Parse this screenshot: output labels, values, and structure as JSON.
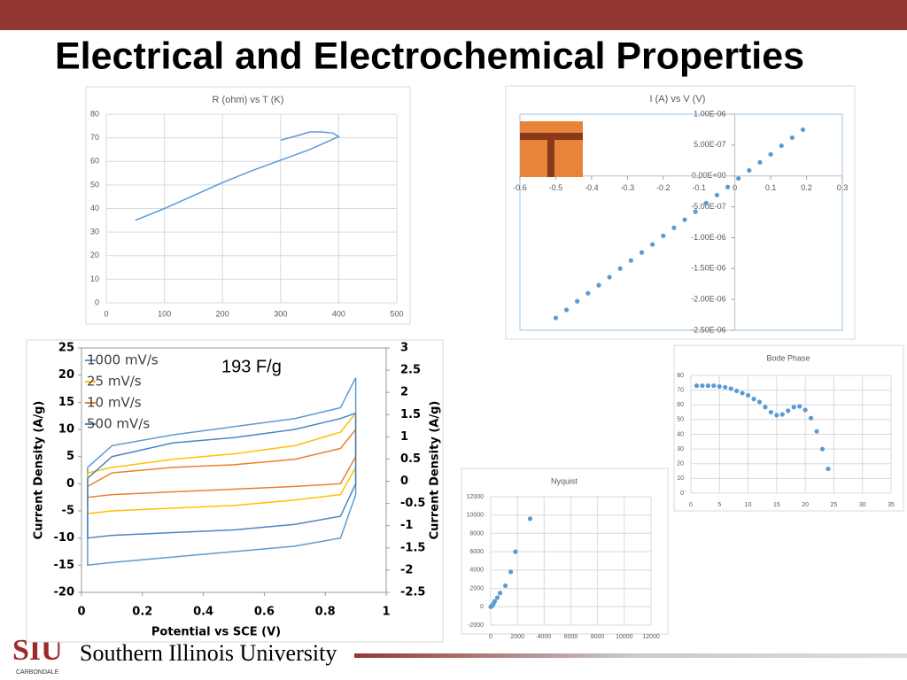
{
  "title": "Electrical and Electrochemical Properties",
  "footer": {
    "logo": "SIU",
    "campus": "CARBONDALE",
    "university": "Southern Illinois University"
  },
  "chart_data": [
    {
      "type": "line",
      "title": "R (ohm)  vs T (K)",
      "grid": true,
      "color": "#5b9bd5",
      "x": [
        50,
        100,
        150,
        200,
        250,
        300,
        350,
        400,
        390,
        370,
        350,
        330,
        300
      ],
      "values": [
        35,
        40,
        45.5,
        51,
        56,
        60.5,
        65,
        70.5,
        72,
        72.5,
        72.5,
        71,
        69
      ],
      "xlim": [
        0,
        500
      ],
      "xticks": [
        0,
        100,
        200,
        300,
        400,
        500
      ],
      "ylim": [
        0,
        80
      ],
      "yticks": [
        0,
        10,
        20,
        30,
        40,
        50,
        60,
        70,
        80
      ]
    },
    {
      "type": "scatter",
      "title": "I (A) vs V (V)",
      "grid": false,
      "color": "#5b9bd5",
      "x": [
        -0.5,
        -0.47,
        -0.44,
        -0.41,
        -0.38,
        -0.35,
        -0.32,
        -0.29,
        -0.26,
        -0.23,
        -0.2,
        -0.17,
        -0.14,
        -0.11,
        -0.08,
        -0.05,
        -0.02,
        0.01,
        0.04,
        0.07,
        0.1,
        0.13,
        0.16,
        0.19
      ],
      "values": [
        -2.3e-06,
        -2.17e-06,
        -2.03e-06,
        -1.9e-06,
        -1.77e-06,
        -1.64e-06,
        -1.5e-06,
        -1.37e-06,
        -1.24e-06,
        -1.11e-06,
        -9.7e-07,
        -8.4e-07,
        -7.1e-07,
        -5.8e-07,
        -4.4e-07,
        -3.1e-07,
        -1.8e-07,
        -4e-08,
        9e-08,
        2.2e-07,
        3.5e-07,
        4.9e-07,
        6.2e-07,
        7.5e-07
      ],
      "xlim": [
        -0.6,
        0.3
      ],
      "xticks": [
        -0.6,
        -0.5,
        -0.4,
        -0.3,
        -0.2,
        -0.1,
        0,
        0.1,
        0.2,
        0.3
      ],
      "ylim": [
        -2.5e-06,
        1e-06
      ],
      "yticks": [
        {
          "value": 1e-06,
          "label": "1.00E-06"
        },
        {
          "value": 5e-07,
          "label": "5.00E-07"
        },
        {
          "value": 0,
          "label": "0.00E+00"
        },
        {
          "value": -5e-07,
          "label": "-5.00E-07"
        },
        {
          "value": -1e-06,
          "label": "-1.00E-06"
        },
        {
          "value": -1.5e-06,
          "label": "-1.50E-06"
        },
        {
          "value": -2e-06,
          "label": "-2.00E-06"
        },
        {
          "value": -2.5e-06,
          "label": "-2.50E-06"
        }
      ]
    },
    {
      "type": "line",
      "grid": false,
      "annotation": "193 F/g",
      "x_label": "Potential vs SCE (V)",
      "y_label": "Current Density (A/g)",
      "y2_label": "Current Density (A/g)",
      "x": [
        0.02,
        0.1,
        0.3,
        0.5,
        0.7,
        0.85,
        0.9,
        0.9,
        0.85,
        0.7,
        0.5,
        0.3,
        0.1,
        0.02,
        0.02
      ],
      "series": [
        {
          "name": "1000 mV/s",
          "color": "#5b9bd5",
          "values": [
            3,
            7,
            9,
            10.5,
            12,
            14,
            19.5,
            -2,
            -10,
            -11.5,
            -12.5,
            -13.5,
            -14.5,
            -15,
            3
          ]
        },
        {
          "name": "25 mV/s",
          "color": "#ffc000",
          "values": [
            2,
            3,
            4.5,
            5.5,
            7,
            9.5,
            13,
            3,
            -2,
            -3,
            -4,
            -4.5,
            -5,
            -5.5,
            2
          ]
        },
        {
          "name": "10 mV/s",
          "color": "#ed7d31",
          "values": [
            -0.5,
            2,
            3,
            3.5,
            4.5,
            6.5,
            10,
            5,
            0,
            -0.5,
            -1,
            -1.5,
            -2,
            -2.5,
            -0.5
          ]
        },
        {
          "name": "500 mV/s",
          "color": "#4a86c5",
          "values": [
            1,
            5,
            7.5,
            8.5,
            10,
            12,
            13,
            0,
            -6,
            -7.5,
            -8.5,
            -9,
            -9.5,
            -10,
            1
          ]
        }
      ],
      "xlim": [
        0,
        1
      ],
      "xticks": [
        0,
        0.2,
        0.4,
        0.6,
        0.8,
        1
      ],
      "ylim": [
        -20,
        25
      ],
      "yticks": [
        -20,
        -15,
        -10,
        -5,
        0,
        5,
        10,
        15,
        20,
        25
      ],
      "y2lim": [
        -2.5,
        3
      ],
      "y2ticks": [
        -2.5,
        -2,
        -1.5,
        -1,
        -0.5,
        0,
        0.5,
        1,
        1.5,
        2,
        2.5,
        3
      ]
    },
    {
      "type": "scatter",
      "title": "Bode Phase",
      "grid": true,
      "color": "#5b9bd5",
      "x": [
        1,
        2,
        3,
        4,
        5,
        6,
        7,
        8,
        9,
        10,
        11,
        12,
        13,
        14,
        15,
        16,
        17,
        18,
        19,
        20,
        21,
        22,
        23,
        24
      ],
      "values": [
        73,
        73,
        73,
        73,
        72.5,
        72,
        71,
        69.5,
        68,
        66.5,
        64,
        62,
        58.5,
        55,
        53,
        53.5,
        56,
        58.5,
        59,
        56.5,
        51,
        42,
        30,
        16.5
      ],
      "xlim": [
        0,
        35
      ],
      "xticks": [
        0,
        5,
        10,
        15,
        20,
        25,
        30,
        35
      ],
      "ylim": [
        0,
        80
      ],
      "yticks": [
        0,
        10,
        20,
        30,
        40,
        50,
        60,
        70,
        80
      ]
    },
    {
      "type": "scatter",
      "title": "Nyquist",
      "grid": true,
      "color": "#5b9bd5",
      "x": [
        0,
        100,
        200,
        300,
        500,
        700,
        1100,
        1500,
        1850,
        2950
      ],
      "values": [
        0,
        100,
        300,
        600,
        1000,
        1500,
        2300,
        3800,
        6000,
        9600
      ],
      "xlim": [
        0,
        12000
      ],
      "xticks": [
        0,
        2000,
        4000,
        6000,
        8000,
        10000,
        12000
      ],
      "ylim": [
        -2000,
        12000
      ],
      "yticks": [
        -2000,
        0,
        2000,
        4000,
        6000,
        8000,
        10000,
        12000
      ]
    }
  ]
}
